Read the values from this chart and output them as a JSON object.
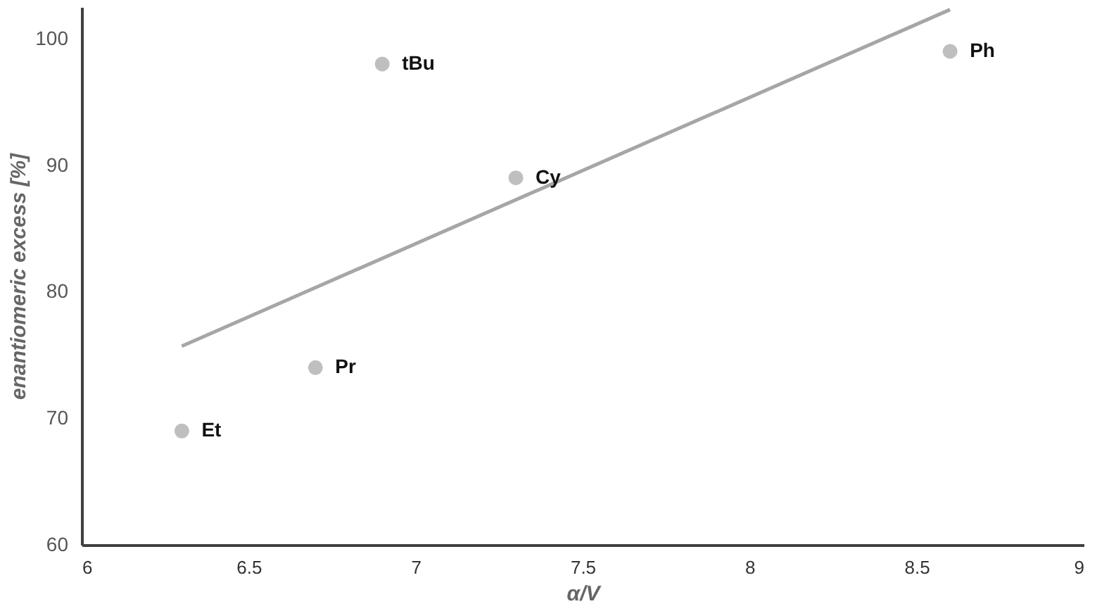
{
  "chart_data": {
    "type": "scatter",
    "xlabel": "α/V",
    "ylabel": "enantiomeric excess  [%]",
    "xlim": [
      6,
      9
    ],
    "xticks": [
      6,
      6.5,
      7,
      7.5,
      8,
      8.5,
      9
    ],
    "ylim": [
      60,
      102.5
    ],
    "yticks": [
      60,
      70,
      80,
      90,
      100
    ],
    "grid": false,
    "marker": "circle",
    "series": [
      {
        "color": "#bfbfbf",
        "x": [
          6.3,
          6.7,
          6.9,
          7.3,
          8.6
        ],
        "values": [
          69,
          74,
          98,
          89,
          99
        ]
      },
      {
        "type": "line",
        "marker": "none",
        "color": "#a6a6a6",
        "x": [
          6.3,
          8.6
        ],
        "values": [
          75.7,
          102.3
        ]
      }
    ],
    "annotations": [
      {
        "text": "Et",
        "x": 6.3,
        "y": 69
      },
      {
        "text": "Pr",
        "x": 6.7,
        "y": 74
      },
      {
        "text": "tBu",
        "x": 6.9,
        "y": 98
      },
      {
        "text": "Cy",
        "x": 7.3,
        "y": 89
      },
      {
        "text": "Ph",
        "x": 8.6,
        "y": 99
      }
    ]
  }
}
